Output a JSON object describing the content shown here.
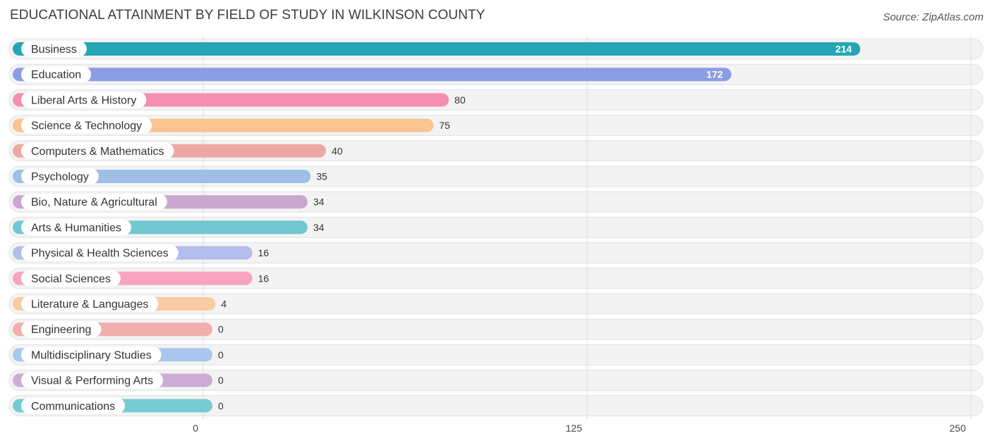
{
  "title": "EDUCATIONAL ATTAINMENT BY FIELD OF STUDY IN WILKINSON COUNTY",
  "source": "Source: ZipAtlas.com",
  "chart_data": {
    "type": "bar",
    "orientation": "horizontal",
    "categories": [
      "Business",
      "Education",
      "Liberal Arts & History",
      "Science & Technology",
      "Computers & Mathematics",
      "Psychology",
      "Bio, Nature & Agricultural",
      "Arts & Humanities",
      "Physical & Health Sciences",
      "Social Sciences",
      "Literature & Languages",
      "Engineering",
      "Multidisciplinary Studies",
      "Visual & Performing Arts",
      "Communications"
    ],
    "values": [
      214,
      172,
      80,
      75,
      40,
      35,
      34,
      34,
      16,
      16,
      4,
      0,
      0,
      0,
      0
    ],
    "colors": [
      "#26a5b5",
      "#8b9de3",
      "#f48fb1",
      "#f9c48f",
      "#eca9a4",
      "#9fbfe9",
      "#c9a8d0",
      "#72c7d1",
      "#b3bdeb",
      "#f7a3bf",
      "#f8cba0",
      "#f2aeab",
      "#a9c6ee",
      "#ccacd4",
      "#76cbd3"
    ],
    "xlim": [
      0,
      250
    ],
    "xticks": [
      0,
      125,
      250
    ],
    "grid": true
  }
}
